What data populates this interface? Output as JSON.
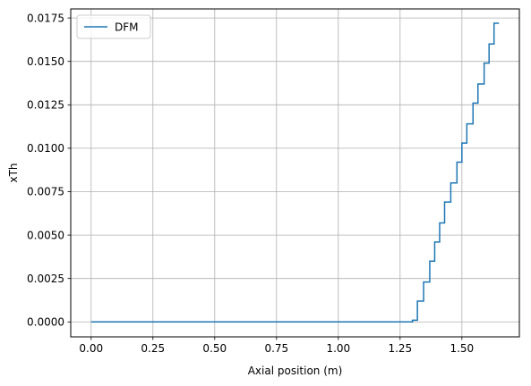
{
  "chart_data": {
    "type": "line",
    "drawstyle": "steps-post",
    "xlabel": "Axial position (m)",
    "ylabel": "xTh",
    "xlim": [
      -0.0825,
      1.7325
    ],
    "ylim": [
      -0.00086,
      0.01802
    ],
    "xticks": [
      0.0,
      0.25,
      0.5,
      0.75,
      1.0,
      1.25,
      1.5
    ],
    "xtick_labels": [
      "0.00",
      "0.25",
      "0.50",
      "0.75",
      "1.00",
      "1.25",
      "1.50"
    ],
    "yticks": [
      0.0,
      0.0025,
      0.005,
      0.0075,
      0.01,
      0.0125,
      0.015,
      0.0175
    ],
    "ytick_labels": [
      "0.0000",
      "0.0025",
      "0.0050",
      "0.0075",
      "0.0100",
      "0.0125",
      "0.0150",
      "0.0175"
    ],
    "grid": true,
    "legend": {
      "placement": "upper-left"
    },
    "series": [
      {
        "name": "DFM",
        "color": "#1f77b4",
        "x": [
          0.0,
          1.3,
          1.32,
          1.345,
          1.37,
          1.39,
          1.41,
          1.43,
          1.455,
          1.48,
          1.5,
          1.52,
          1.545,
          1.565,
          1.59,
          1.61,
          1.63,
          1.65
        ],
        "y": [
          0.0,
          0.0001,
          0.0012,
          0.0023,
          0.0035,
          0.0046,
          0.0057,
          0.0069,
          0.008,
          0.0092,
          0.0103,
          0.0114,
          0.0126,
          0.0137,
          0.0149,
          0.016,
          0.0172,
          0.0172
        ]
      }
    ]
  }
}
